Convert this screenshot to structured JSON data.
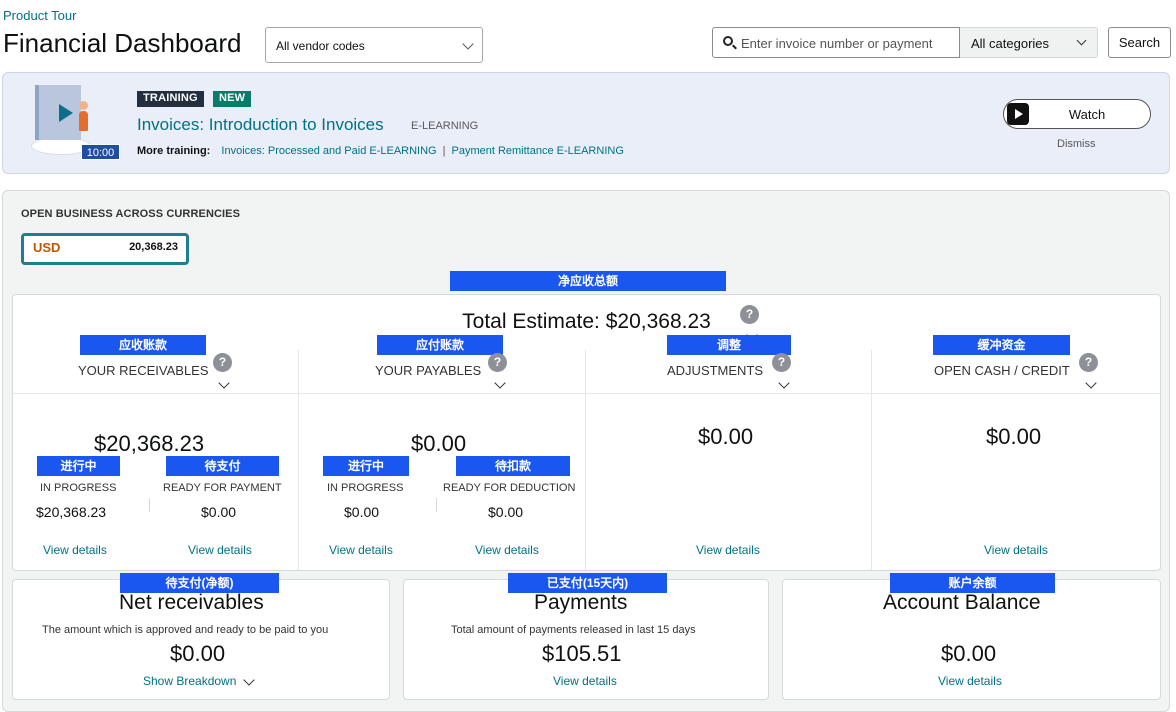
{
  "header": {
    "tour_link": "Product Tour",
    "title": "Financial Dashboard",
    "vendor_select": "All vendor codes",
    "search_placeholder": "Enter invoice number or payment",
    "category_select": "All categories",
    "search_button": "Search"
  },
  "training": {
    "duration": "10:00",
    "tag_training": "TRAINING",
    "tag_new": "NEW",
    "title": "Invoices: Introduction to Invoices",
    "type": "E-LEARNING",
    "more_label": "More training:",
    "more_links": [
      "Invoices: Processed and Paid E-LEARNING",
      "Payment Remittance E-LEARNING"
    ],
    "watch_button": "Watch",
    "dismiss": "Dismiss"
  },
  "open_business": {
    "title": "OPEN BUSINESS ACROSS CURRENCIES",
    "currency_code": "USD",
    "currency_value": "20,368.23"
  },
  "estimate": {
    "cn_label": "净应收总额",
    "title": "Total Estimate: $20,368.23",
    "help": "?"
  },
  "columns": [
    {
      "cn_label": "应收账款",
      "heading": "YOUR RECEIVABLES",
      "amount": "$20,368.23",
      "subs": [
        {
          "cn_label": "进行中",
          "label": "IN PROGRESS",
          "value": "$20,368.23",
          "link": "View details"
        },
        {
          "cn_label": "待支付",
          "label": "READY FOR PAYMENT",
          "value": "$0.00",
          "link": "View details"
        }
      ]
    },
    {
      "cn_label": "应付账款",
      "heading": "YOUR PAYABLES",
      "amount": "$0.00",
      "subs": [
        {
          "cn_label": "进行中",
          "label": "IN PROGRESS",
          "value": "$0.00",
          "link": "View details"
        },
        {
          "cn_label": "待扣款",
          "label": "READY FOR DEDUCTION",
          "value": "$0.00",
          "link": "View details"
        }
      ]
    },
    {
      "cn_label": "调整",
      "heading": "ADJUSTMENTS",
      "amount": "$0.00",
      "link": "View details"
    },
    {
      "cn_label": "缓冲资金",
      "heading": "OPEN CASH / CREDIT",
      "amount": "$0.00",
      "link": "View details"
    }
  ],
  "cards": [
    {
      "cn_label": "待支付(净额)",
      "title": "Net receivables",
      "desc": "The amount which is approved and ready to be paid to you",
      "amount": "$0.00",
      "link": "Show Breakdown"
    },
    {
      "cn_label": "已支付(15天内)",
      "title": "Payments",
      "desc": "Total amount of payments released in last 15 days",
      "amount": "$105.51",
      "link": "View details"
    },
    {
      "cn_label": "账户余额",
      "title": "Account Balance",
      "desc": "",
      "amount": "$0.00",
      "link": "View details"
    }
  ]
}
